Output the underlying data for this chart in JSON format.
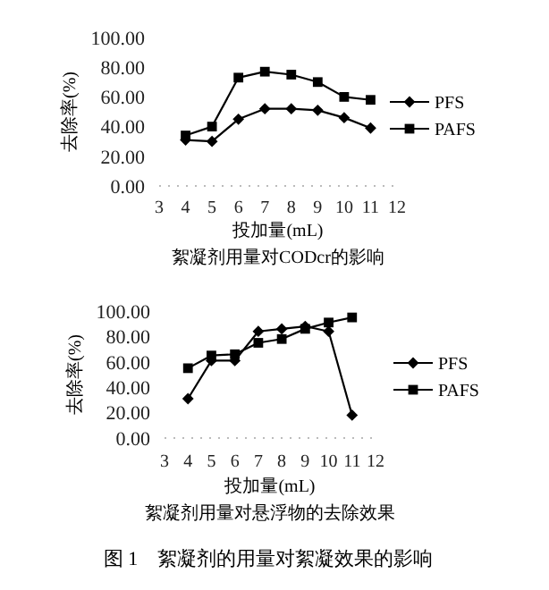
{
  "chart_data": [
    {
      "type": "line",
      "title": "絮凝剂用量对CODcr的影响",
      "xlabel": "投加量(mL)",
      "ylabel": "去除率(%)",
      "x": [
        4,
        5,
        6,
        7,
        8,
        9,
        10,
        11
      ],
      "xlim": [
        3,
        12
      ],
      "xticks": [
        3,
        4,
        5,
        6,
        7,
        8,
        9,
        10,
        11,
        12
      ],
      "ylim": [
        0,
        100
      ],
      "yticks": [
        {
          "value": 0,
          "label": "0.00"
        },
        {
          "value": 20,
          "label": "20.00"
        },
        {
          "value": 40,
          "label": "40.00"
        },
        {
          "value": 60,
          "label": "60.00"
        },
        {
          "value": 80,
          "label": "80.00"
        },
        {
          "value": 100,
          "label": "100.00"
        }
      ],
      "grid": false,
      "legend": "right",
      "line_style": "solid",
      "series": [
        {
          "name": "PFS",
          "color": "#000000",
          "marker": "diamond",
          "values": [
            31,
            30,
            45,
            52,
            52,
            51,
            46,
            39
          ]
        },
        {
          "name": "PAFS",
          "color": "#000000",
          "marker": "square",
          "values": [
            34,
            40,
            73,
            77,
            75,
            70,
            60,
            58
          ]
        }
      ]
    },
    {
      "type": "line",
      "title": "絮凝剂用量对悬浮物的去除效果",
      "xlabel": "投加量(mL)",
      "ylabel": "去除率(%)",
      "x": [
        4,
        5,
        6,
        7,
        8,
        9,
        10,
        11
      ],
      "xlim": [
        3,
        12
      ],
      "xticks": [
        3,
        4,
        5,
        6,
        7,
        8,
        9,
        10,
        11,
        12
      ],
      "ylim": [
        0,
        100
      ],
      "yticks": [
        {
          "value": 0,
          "label": "0.00"
        },
        {
          "value": 20,
          "label": "20.00"
        },
        {
          "value": 40,
          "label": "40.00"
        },
        {
          "value": 60,
          "label": "60.00"
        },
        {
          "value": 80,
          "label": "80.00"
        },
        {
          "value": 100,
          "label": "100.00"
        }
      ],
      "grid": false,
      "legend": "right",
      "line_style": "solid",
      "annotations": [
        "图 1　絮凝剂的用量对絮凝效果的影响"
      ],
      "series": [
        {
          "name": "PFS",
          "color": "#000000",
          "marker": "diamond",
          "values": [
            31,
            61,
            61,
            84,
            86,
            88,
            84,
            18
          ]
        },
        {
          "name": "PAFS",
          "color": "#000000",
          "marker": "square",
          "values": [
            55,
            65,
            66,
            75,
            78,
            86,
            91,
            95
          ]
        }
      ]
    }
  ]
}
